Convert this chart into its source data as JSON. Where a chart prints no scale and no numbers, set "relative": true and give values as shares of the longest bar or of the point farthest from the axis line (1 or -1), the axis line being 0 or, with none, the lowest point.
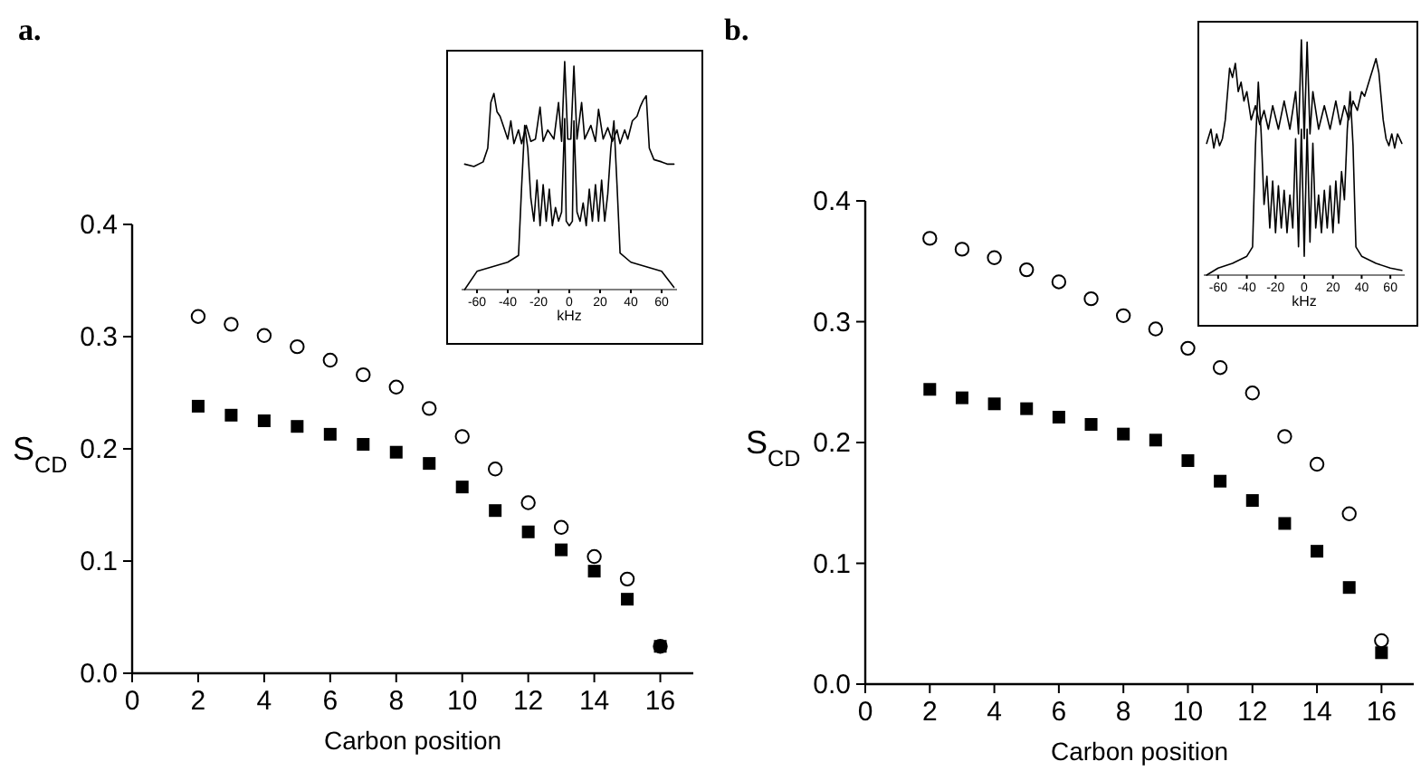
{
  "chart_data": [
    {
      "type": "scatter",
      "title": "a.",
      "xlabel": "Carbon position",
      "ylabel": "S$_{CD}$",
      "xlim": [
        0,
        17
      ],
      "xticks": [
        0,
        2,
        4,
        6,
        8,
        10,
        12,
        14,
        16
      ],
      "ylim": [
        0,
        0.4
      ],
      "yticks": [
        {
          "value": 0,
          "label": "0.0"
        },
        0.1,
        0.2,
        0.3,
        0.4
      ],
      "grid": false,
      "x": [
        2,
        3,
        4,
        5,
        6,
        7,
        8,
        9,
        10,
        11,
        12,
        13,
        14,
        15,
        16
      ],
      "series": [
        {
          "color": "#000000",
          "marker": "circle",
          "values": [
            0.318,
            0.311,
            0.301,
            0.291,
            0.279,
            0.266,
            0.255,
            0.236,
            0.211,
            0.182,
            0.152,
            0.13,
            0.104,
            0.084,
            0.024
          ]
        },
        {
          "color": "#000000",
          "marker": "square",
          "values": [
            0.238,
            0.23,
            0.225,
            0.22,
            0.213,
            0.204,
            0.197,
            0.187,
            0.166,
            0.145,
            0.126,
            0.11,
            0.091,
            0.066,
            0.024
          ]
        }
      ]
    },
    {
      "type": "line",
      "relative": true,
      "xlabel": "kHz",
      "xlim": [
        -70,
        70
      ],
      "xticks": [
        -60,
        -40,
        -20,
        0,
        20,
        40,
        60
      ],
      "tick_labels": "x",
      "series": [
        {
          "color": "#000000",
          "x": [
            -68,
            -62,
            -56,
            -53,
            -51,
            -49,
            -47,
            -45,
            -43,
            -40,
            -38,
            -36,
            -33,
            -31,
            -28,
            -25,
            -22,
            -19,
            -17,
            -14,
            -10,
            -7,
            -5,
            -3,
            -1,
            1,
            3,
            5,
            8,
            10,
            14,
            17,
            19,
            22,
            25,
            28,
            31,
            33,
            36,
            38,
            41,
            44,
            46,
            48,
            50,
            52,
            55,
            60,
            64,
            68
          ],
          "values": [
            0.55,
            0.54,
            0.56,
            0.62,
            0.82,
            0.86,
            0.78,
            0.76,
            0.72,
            0.66,
            0.74,
            0.64,
            0.7,
            0.64,
            0.72,
            0.65,
            0.66,
            0.8,
            0.65,
            0.7,
            0.66,
            0.82,
            0.65,
            1.0,
            0.66,
            0.66,
            0.98,
            0.66,
            0.82,
            0.66,
            0.72,
            0.65,
            0.79,
            0.66,
            0.71,
            0.65,
            0.7,
            0.64,
            0.7,
            0.66,
            0.74,
            0.76,
            0.8,
            0.83,
            0.85,
            0.62,
            0.57,
            0.56,
            0.55,
            0.55
          ]
        },
        {
          "color": "#000000",
          "x": [
            -68,
            -60,
            -50,
            -40,
            -33,
            -31,
            -29,
            -27,
            -25,
            -23,
            -21,
            -19,
            -17,
            -15,
            -13,
            -11,
            -9,
            -7,
            -5,
            -3,
            -2,
            0,
            2,
            3,
            5,
            7,
            9,
            11,
            13,
            15,
            17,
            19,
            21,
            23,
            25,
            27,
            29,
            31,
            33,
            40,
            50,
            60,
            68
          ],
          "values": [
            0.0,
            0.08,
            0.1,
            0.12,
            0.15,
            0.45,
            0.72,
            0.62,
            0.4,
            0.3,
            0.48,
            0.28,
            0.46,
            0.3,
            0.44,
            0.28,
            0.36,
            0.3,
            0.34,
            0.75,
            0.3,
            0.28,
            0.3,
            0.74,
            0.34,
            0.3,
            0.38,
            0.28,
            0.44,
            0.3,
            0.46,
            0.3,
            0.48,
            0.3,
            0.42,
            0.62,
            0.74,
            0.46,
            0.16,
            0.12,
            0.1,
            0.08,
            0.01
          ]
        }
      ]
    },
    {
      "type": "scatter",
      "title": "b.",
      "xlabel": "Carbon position",
      "ylabel": "S$_{CD}$",
      "xlim": [
        0,
        17
      ],
      "xticks": [
        0,
        2,
        4,
        6,
        8,
        10,
        12,
        14,
        16
      ],
      "ylim": [
        0,
        0.4
      ],
      "yticks": [
        {
          "value": 0,
          "label": "0.0"
        },
        0.1,
        0.2,
        0.3,
        0.4
      ],
      "grid": false,
      "x": [
        2,
        3,
        4,
        5,
        6,
        7,
        8,
        9,
        10,
        11,
        12,
        13,
        14,
        15,
        16
      ],
      "series": [
        {
          "color": "#000000",
          "marker": "circle",
          "values": [
            0.369,
            0.36,
            0.353,
            0.343,
            0.333,
            0.319,
            0.305,
            0.294,
            0.278,
            0.262,
            0.241,
            0.205,
            0.182,
            0.141,
            0.036
          ]
        },
        {
          "color": "#000000",
          "marker": "square",
          "values": [
            0.244,
            0.237,
            0.232,
            0.228,
            0.221,
            0.215,
            0.207,
            0.202,
            0.185,
            0.168,
            0.152,
            0.133,
            0.11,
            0.08,
            0.026
          ]
        }
      ]
    },
    {
      "type": "line",
      "relative": true,
      "xlabel": "kHz",
      "xlim": [
        -70,
        70
      ],
      "xticks": [
        -60,
        -40,
        -20,
        0,
        20,
        40,
        60
      ],
      "tick_labels": "x",
      "series": [
        {
          "color": "#000000",
          "x": [
            -68,
            -65,
            -63,
            -61,
            -59,
            -57,
            -55,
            -52,
            -50,
            -48,
            -46,
            -44,
            -42,
            -40,
            -37,
            -34,
            -31,
            -28,
            -25,
            -22,
            -18,
            -14,
            -10,
            -6,
            -4,
            -2,
            0,
            2,
            4,
            6,
            10,
            14,
            18,
            22,
            25,
            28,
            31,
            34,
            37,
            40,
            42,
            44,
            46,
            48,
            50,
            52,
            55,
            57,
            59,
            61,
            63,
            65,
            68
          ],
          "values": [
            0.56,
            0.62,
            0.54,
            0.6,
            0.55,
            0.58,
            0.66,
            0.88,
            0.84,
            0.9,
            0.78,
            0.82,
            0.74,
            0.78,
            0.66,
            0.72,
            0.64,
            0.7,
            0.62,
            0.72,
            0.62,
            0.74,
            0.62,
            0.78,
            0.6,
            1.0,
            0.58,
            0.99,
            0.6,
            0.78,
            0.62,
            0.72,
            0.62,
            0.74,
            0.64,
            0.72,
            0.66,
            0.74,
            0.7,
            0.78,
            0.76,
            0.8,
            0.84,
            0.88,
            0.92,
            0.86,
            0.66,
            0.58,
            0.55,
            0.6,
            0.54,
            0.6,
            0.56
          ]
        },
        {
          "color": "#000000",
          "x": [
            -68,
            -60,
            -50,
            -40,
            -36,
            -34,
            -32,
            -30,
            -28,
            -26,
            -24,
            -22,
            -20,
            -18,
            -16,
            -14,
            -12,
            -10,
            -8,
            -6,
            -4,
            -2,
            0,
            2,
            4,
            6,
            8,
            10,
            12,
            14,
            16,
            18,
            20,
            22,
            24,
            26,
            28,
            30,
            32,
            34,
            36,
            40,
            50,
            60,
            68
          ],
          "values": [
            0.0,
            0.03,
            0.05,
            0.08,
            0.12,
            0.55,
            0.82,
            0.6,
            0.3,
            0.42,
            0.2,
            0.4,
            0.18,
            0.38,
            0.2,
            0.36,
            0.18,
            0.34,
            0.2,
            0.58,
            0.12,
            0.62,
            0.08,
            0.62,
            0.14,
            0.56,
            0.2,
            0.34,
            0.18,
            0.36,
            0.2,
            0.38,
            0.18,
            0.4,
            0.22,
            0.44,
            0.32,
            0.62,
            0.78,
            0.55,
            0.12,
            0.08,
            0.05,
            0.03,
            0.02
          ]
        }
      ]
    }
  ]
}
